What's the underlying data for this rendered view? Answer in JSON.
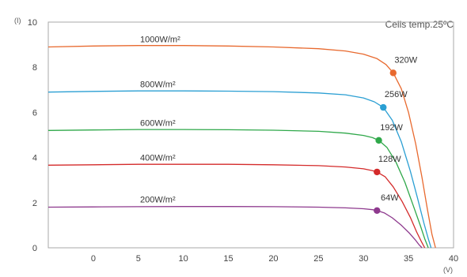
{
  "chart_data": {
    "type": "line",
    "title": "Cells temp.25ºC",
    "xlabel": "(V)",
    "ylabel": "(I)",
    "xlim": [
      -5,
      40
    ],
    "ylim": [
      0,
      10
    ],
    "xticks": [
      "0",
      "5",
      "10",
      "15",
      "20",
      "25",
      "30",
      "35",
      "40"
    ],
    "yticks": [
      "0",
      "2",
      "4",
      "6",
      "8",
      "10"
    ],
    "grid": false,
    "series": [
      {
        "name": "1000W/m²",
        "color": "#e8692e",
        "x": [
          -5,
          0,
          5,
          10,
          15,
          20,
          25,
          28,
          30,
          31.5,
          32.5,
          33.3,
          34.2,
          35,
          35.8,
          36.5,
          37.1,
          37.6,
          38.0
        ],
        "y": [
          8.9,
          8.94,
          8.96,
          8.96,
          8.94,
          8.9,
          8.82,
          8.72,
          8.58,
          8.38,
          8.12,
          7.75,
          7.05,
          6.0,
          4.6,
          3.1,
          1.7,
          0.6,
          0.0
        ],
        "mpp": {
          "x": 33.3,
          "y": 7.75,
          "label": "320W"
        }
      },
      {
        "name": "800W/m²",
        "color": "#2b9fd3",
        "x": [
          -5,
          0,
          5,
          10,
          15,
          20,
          25,
          28,
          30,
          31.2,
          32.2,
          33.2,
          34.2,
          35.2,
          36.0,
          36.7,
          37.2,
          37.5
        ],
        "y": [
          6.9,
          6.93,
          6.95,
          6.95,
          6.94,
          6.92,
          6.86,
          6.78,
          6.64,
          6.47,
          6.22,
          5.65,
          4.7,
          3.4,
          2.2,
          1.1,
          0.4,
          0.0
        ],
        "mpp": {
          "x": 32.2,
          "y": 6.22,
          "label": "256W"
        }
      },
      {
        "name": "600W/m²",
        "color": "#2fa84a",
        "x": [
          -5,
          0,
          5,
          10,
          15,
          20,
          25,
          28,
          30,
          31,
          31.7,
          32.6,
          33.6,
          34.6,
          35.5,
          36.3,
          36.8,
          37.2
        ],
        "y": [
          5.2,
          5.22,
          5.24,
          5.24,
          5.23,
          5.21,
          5.16,
          5.08,
          4.98,
          4.88,
          4.76,
          4.45,
          3.8,
          2.9,
          1.9,
          1.0,
          0.4,
          0.0
        ],
        "mpp": {
          "x": 31.7,
          "y": 4.76,
          "label": "192W"
        }
      },
      {
        "name": "400W/m²",
        "color": "#d42a2a",
        "x": [
          -5,
          0,
          5,
          10,
          15,
          20,
          25,
          28,
          30,
          31,
          31.5,
          32.4,
          33.3,
          34.3,
          35.2,
          35.9,
          36.4,
          36.8
        ],
        "y": [
          3.66,
          3.68,
          3.7,
          3.7,
          3.7,
          3.68,
          3.64,
          3.58,
          3.5,
          3.42,
          3.36,
          3.15,
          2.7,
          2.05,
          1.35,
          0.7,
          0.3,
          0.0
        ],
        "mpp": {
          "x": 31.5,
          "y": 3.36,
          "label": "128W"
        }
      },
      {
        "name": "200W/m²",
        "color": "#8e3a8e",
        "x": [
          -5,
          0,
          5,
          10,
          15,
          20,
          25,
          28,
          30,
          31,
          31.5,
          32.3,
          33.2,
          34.2,
          35.1,
          35.8,
          36.2,
          36.5
        ],
        "y": [
          1.8,
          1.81,
          1.82,
          1.83,
          1.83,
          1.82,
          1.8,
          1.77,
          1.73,
          1.69,
          1.65,
          1.55,
          1.33,
          1.0,
          0.65,
          0.33,
          0.12,
          0.0
        ],
        "mpp": {
          "x": 31.5,
          "y": 1.65,
          "label": "64W"
        }
      }
    ]
  }
}
